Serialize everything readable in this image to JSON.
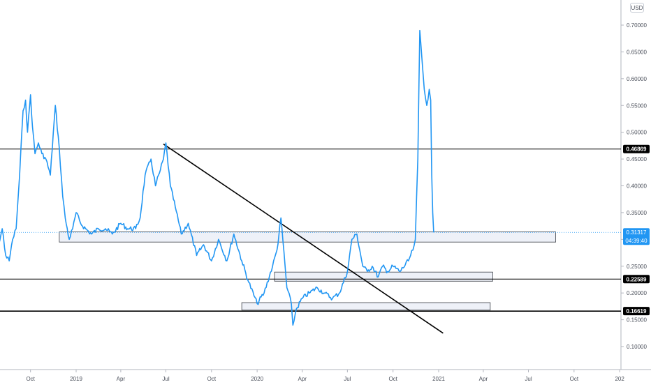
{
  "currency": "USD",
  "chart_data": {
    "type": "line",
    "title": "",
    "xlabel": "",
    "ylabel": "",
    "x_ticks": [
      "Oct",
      "2019",
      "Apr",
      "Jul",
      "Oct",
      "2020",
      "Apr",
      "Jul",
      "Oct",
      "2021",
      "Apr",
      "Jul",
      "Oct",
      "202"
    ],
    "y_ticks": [
      "0.70000",
      "0.65000",
      "0.60000",
      "0.55000",
      "0.50000",
      "0.45000",
      "0.40000",
      "0.35000",
      "0.30000",
      "0.25000",
      "0.20000",
      "0.15000",
      "0.10000"
    ],
    "ylim": [
      0.06,
      0.74
    ],
    "grid": false,
    "series": [
      {
        "color": "#2196f3",
        "x": [
          "2018-07-01",
          "2018-07-08",
          "2018-07-15",
          "2018-07-22",
          "2018-07-29",
          "2018-08-05",
          "2018-08-12",
          "2018-08-19",
          "2018-08-26",
          "2018-09-02",
          "2018-09-09",
          "2018-09-16",
          "2018-09-21",
          "2018-09-25",
          "2018-10-01",
          "2018-10-05",
          "2018-10-10",
          "2018-10-17",
          "2018-10-24",
          "2018-11-01",
          "2018-11-10",
          "2018-11-20",
          "2018-11-28",
          "2018-12-05",
          "2018-12-10",
          "2018-12-18",
          "2018-12-25",
          "2019-01-01",
          "2019-01-10",
          "2019-01-20",
          "2019-02-01",
          "2019-02-15",
          "2019-03-01",
          "2019-03-15",
          "2019-04-01",
          "2019-04-15",
          "2019-05-01",
          "2019-05-10",
          "2019-05-20",
          "2019-06-01",
          "2019-06-10",
          "2019-06-20",
          "2019-06-26",
          "2019-07-01",
          "2019-07-10",
          "2019-07-20",
          "2019-08-01",
          "2019-08-15",
          "2019-09-01",
          "2019-09-15",
          "2019-10-01",
          "2019-10-15",
          "2019-11-01",
          "2019-11-15",
          "2019-12-01",
          "2019-12-15",
          "2020-01-01",
          "2020-01-15",
          "2020-02-01",
          "2020-02-10",
          "2020-02-18",
          "2020-03-01",
          "2020-03-10",
          "2020-03-13",
          "2020-03-20",
          "2020-04-01",
          "2020-04-15",
          "2020-05-01",
          "2020-05-15",
          "2020-06-01",
          "2020-06-15",
          "2020-07-01",
          "2020-07-10",
          "2020-07-20",
          "2020-08-01",
          "2020-08-10",
          "2020-08-20",
          "2020-09-01",
          "2020-09-10",
          "2020-09-20",
          "2020-10-01",
          "2020-10-15",
          "2020-11-01",
          "2020-11-10",
          "2020-11-15",
          "2020-11-20",
          "2020-11-24",
          "2020-11-28",
          "2020-12-03",
          "2020-12-08",
          "2020-12-13",
          "2020-12-16",
          "2020-12-18",
          "2020-12-20",
          "2020-12-22"
        ],
        "values": [
          0.44,
          0.38,
          0.3,
          0.34,
          0.29,
          0.32,
          0.27,
          0.26,
          0.3,
          0.32,
          0.42,
          0.54,
          0.56,
          0.5,
          0.57,
          0.51,
          0.46,
          0.48,
          0.46,
          0.45,
          0.42,
          0.55,
          0.47,
          0.38,
          0.34,
          0.3,
          0.32,
          0.35,
          0.33,
          0.32,
          0.31,
          0.32,
          0.32,
          0.31,
          0.33,
          0.32,
          0.32,
          0.34,
          0.42,
          0.45,
          0.4,
          0.43,
          0.45,
          0.48,
          0.4,
          0.36,
          0.31,
          0.33,
          0.27,
          0.29,
          0.26,
          0.3,
          0.26,
          0.31,
          0.26,
          0.22,
          0.18,
          0.2,
          0.25,
          0.28,
          0.34,
          0.21,
          0.18,
          0.14,
          0.17,
          0.19,
          0.2,
          0.21,
          0.2,
          0.19,
          0.2,
          0.24,
          0.3,
          0.31,
          0.25,
          0.24,
          0.25,
          0.23,
          0.25,
          0.24,
          0.25,
          0.24,
          0.26,
          0.28,
          0.3,
          0.45,
          0.69,
          0.64,
          0.58,
          0.55,
          0.58,
          0.56,
          0.42,
          0.35,
          0.313
        ]
      }
    ],
    "horizontal_levels": [
      {
        "value": 0.46869,
        "label": "0.46869"
      },
      {
        "value": 0.22589,
        "label": "0.22589"
      },
      {
        "value": 0.16619,
        "label": "0.16619"
      }
    ],
    "current_price": {
      "value": 0.31317,
      "label": "0.31317",
      "countdown": "04:39:40"
    },
    "zones": [
      {
        "x_start": "2018-11-28",
        "x_end": "2021-08-25",
        "y_low": 0.295,
        "y_high": 0.314
      },
      {
        "x_start": "2020-02-05",
        "x_end": "2021-04-20",
        "y_low": 0.222,
        "y_high": 0.239
      },
      {
        "x_start": "2019-12-01",
        "x_end": "2021-04-15",
        "y_low": 0.168,
        "y_high": 0.182
      }
    ],
    "trendline": {
      "x_start": "2019-06-26",
      "y_start": 0.478,
      "x_end": "2021-01-10",
      "y_end": 0.125
    }
  }
}
